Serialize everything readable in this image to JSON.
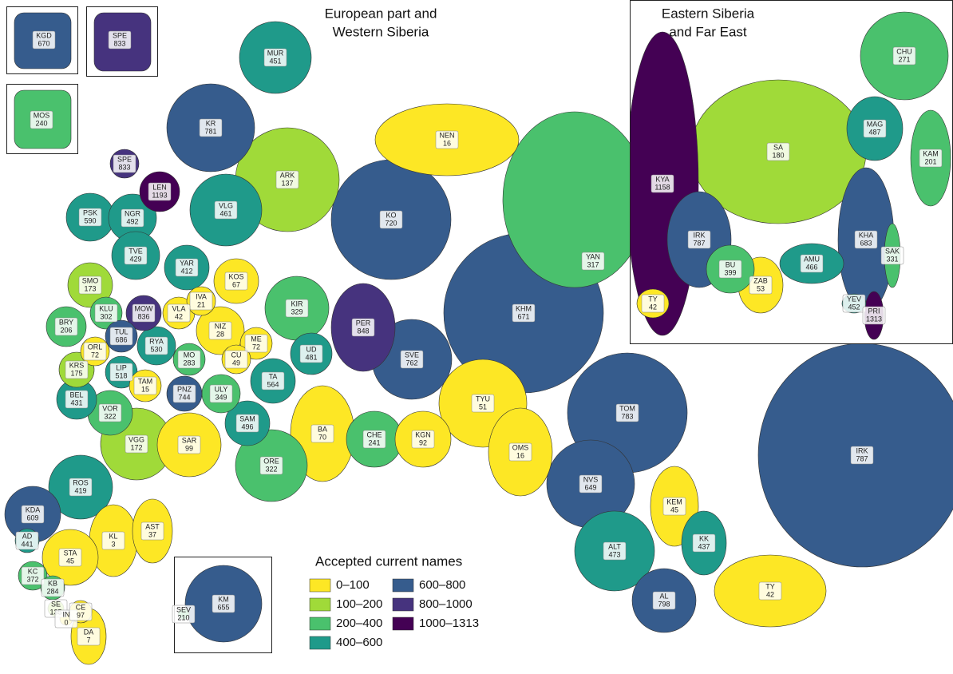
{
  "map": {
    "type": "choropleth",
    "main_title": [
      "European part and",
      "Western Siberia"
    ],
    "east_title": [
      "Eastern Siberia",
      "and Far East"
    ],
    "legend": {
      "title": "Accepted current names",
      "items": [
        {
          "label": "0–100",
          "color": "#fde725"
        },
        {
          "label": "100–200",
          "color": "#a0da39"
        },
        {
          "label": "200–400",
          "color": "#4ac16d"
        },
        {
          "label": "400–600",
          "color": "#1f9a8a"
        },
        {
          "label": "600–800",
          "color": "#365c8d"
        },
        {
          "label": "800–1000",
          "color": "#46337e"
        },
        {
          "label": "1000–1313",
          "color": "#440154"
        }
      ]
    },
    "insets": [
      {
        "code": "KGD",
        "value": 670,
        "color": "#365c8d"
      },
      {
        "code": "SPE",
        "value": 833,
        "color": "#46337e"
      },
      {
        "code": "MOS",
        "value": 240,
        "color": "#4ac16d"
      },
      {
        "code": "KM",
        "value": 655,
        "color": "#365c8d"
      },
      {
        "code": "SEV",
        "value": 210,
        "color": "#4ac16d"
      }
    ],
    "main": [
      {
        "code": "MUR",
        "value": 451,
        "color": "#1f9a8a"
      },
      {
        "code": "KR",
        "value": 781,
        "color": "#365c8d"
      },
      {
        "code": "NEN",
        "value": 16,
        "color": "#fde725"
      },
      {
        "code": "ARK",
        "value": 137,
        "color": "#a0da39"
      },
      {
        "code": "SPE",
        "value": 833,
        "color": "#46337e"
      },
      {
        "code": "LEN",
        "value": 1193,
        "color": "#440154"
      },
      {
        "code": "KO",
        "value": 720,
        "color": "#365c8d"
      },
      {
        "code": "PSK",
        "value": 590,
        "color": "#1f9a8a"
      },
      {
        "code": "NGR",
        "value": 492,
        "color": "#1f9a8a"
      },
      {
        "code": "VLG",
        "value": 461,
        "color": "#1f9a8a"
      },
      {
        "code": "TVE",
        "value": 429,
        "color": "#1f9a8a"
      },
      {
        "code": "YAR",
        "value": 412,
        "color": "#1f9a8a"
      },
      {
        "code": "SMO",
        "value": 173,
        "color": "#a0da39"
      },
      {
        "code": "KOS",
        "value": 67,
        "color": "#fde725"
      },
      {
        "code": "IVA",
        "value": 21,
        "color": "#fde725"
      },
      {
        "code": "KLU",
        "value": 302,
        "color": "#4ac16d"
      },
      {
        "code": "MOW",
        "value": 836,
        "color": "#46337e"
      },
      {
        "code": "VLA",
        "value": 42,
        "color": "#fde725"
      },
      {
        "code": "KIR",
        "value": 329,
        "color": "#4ac16d"
      },
      {
        "code": "PER",
        "value": 848,
        "color": "#46337e"
      },
      {
        "code": "KHM",
        "value": 671,
        "color": "#365c8d"
      },
      {
        "code": "YAN",
        "value": 317,
        "color": "#4ac16d"
      },
      {
        "code": "BRY",
        "value": 206,
        "color": "#4ac16d"
      },
      {
        "code": "TUL",
        "value": 686,
        "color": "#365c8d"
      },
      {
        "code": "RYA",
        "value": 530,
        "color": "#1f9a8a"
      },
      {
        "code": "NIZ",
        "value": 28,
        "color": "#fde725"
      },
      {
        "code": "ME",
        "value": 72,
        "color": "#fde725"
      },
      {
        "code": "UD",
        "value": 481,
        "color": "#1f9a8a"
      },
      {
        "code": "ORL",
        "value": 72,
        "color": "#fde725"
      },
      {
        "code": "MO",
        "value": 283,
        "color": "#4ac16d"
      },
      {
        "code": "CU",
        "value": 49,
        "color": "#fde725"
      },
      {
        "code": "SVE",
        "value": 762,
        "color": "#365c8d"
      },
      {
        "code": "KRS",
        "value": 175,
        "color": "#a0da39"
      },
      {
        "code": "LIP",
        "value": 518,
        "color": "#1f9a8a"
      },
      {
        "code": "TA",
        "value": 564,
        "color": "#1f9a8a"
      },
      {
        "code": "TAM",
        "value": 15,
        "color": "#fde725"
      },
      {
        "code": "PNZ",
        "value": 744,
        "color": "#365c8d"
      },
      {
        "code": "ULY",
        "value": 349,
        "color": "#4ac16d"
      },
      {
        "code": "TYU",
        "value": 51,
        "color": "#fde725"
      },
      {
        "code": "BEL",
        "value": 431,
        "color": "#1f9a8a"
      },
      {
        "code": "TOM",
        "value": 783,
        "color": "#365c8d"
      },
      {
        "code": "VOR",
        "value": 322,
        "color": "#4ac16d"
      },
      {
        "code": "SAM",
        "value": 496,
        "color": "#1f9a8a"
      },
      {
        "code": "BA",
        "value": 70,
        "color": "#fde725"
      },
      {
        "code": "CHE",
        "value": 241,
        "color": "#4ac16d"
      },
      {
        "code": "KGN",
        "value": 92,
        "color": "#fde725"
      },
      {
        "code": "SAR",
        "value": 99,
        "color": "#fde725"
      },
      {
        "code": "VGG",
        "value": 172,
        "color": "#a0da39"
      },
      {
        "code": "OMS",
        "value": 16,
        "color": "#fde725"
      },
      {
        "code": "IRK",
        "value": 787,
        "color": "#365c8d"
      },
      {
        "code": "ORE",
        "value": 322,
        "color": "#4ac16d"
      },
      {
        "code": "NVS",
        "value": 649,
        "color": "#365c8d"
      },
      {
        "code": "ROS",
        "value": 419,
        "color": "#1f9a8a"
      },
      {
        "code": "KEM",
        "value": 45,
        "color": "#fde725"
      },
      {
        "code": "KDA",
        "value": 609,
        "color": "#365c8d"
      },
      {
        "code": "AST",
        "value": 37,
        "color": "#fde725"
      },
      {
        "code": "AD",
        "value": 441,
        "color": "#1f9a8a"
      },
      {
        "code": "KL",
        "value": 3,
        "color": "#fde725"
      },
      {
        "code": "KK",
        "value": 437,
        "color": "#1f9a8a"
      },
      {
        "code": "ALT",
        "value": 473,
        "color": "#1f9a8a"
      },
      {
        "code": "STA",
        "value": 45,
        "color": "#fde725"
      },
      {
        "code": "KC",
        "value": 372,
        "color": "#4ac16d"
      },
      {
        "code": "KB",
        "value": 284,
        "color": "#4ac16d"
      },
      {
        "code": "AL",
        "value": 798,
        "color": "#365c8d"
      },
      {
        "code": "TY",
        "value": 42,
        "color": "#fde725"
      },
      {
        "code": "SE",
        "value": 135,
        "color": "#a0da39"
      },
      {
        "code": "IN",
        "value": 0,
        "color": "#fde725"
      },
      {
        "code": "CE",
        "value": 97,
        "color": "#fde725"
      },
      {
        "code": "DA",
        "value": 7,
        "color": "#fde725"
      }
    ],
    "east": [
      {
        "code": "KYA",
        "value": 1158,
        "color": "#440154"
      },
      {
        "code": "SA",
        "value": 180,
        "color": "#a0da39"
      },
      {
        "code": "CHU",
        "value": 271,
        "color": "#4ac16d"
      },
      {
        "code": "MAG",
        "value": 487,
        "color": "#1f9a8a"
      },
      {
        "code": "KAM",
        "value": 201,
        "color": "#4ac16d"
      },
      {
        "code": "IRK",
        "value": 787,
        "color": "#365c8d"
      },
      {
        "code": "BU",
        "value": 399,
        "color": "#4ac16d"
      },
      {
        "code": "AMU",
        "value": 466,
        "color": "#1f9a8a"
      },
      {
        "code": "KHA",
        "value": 683,
        "color": "#365c8d"
      },
      {
        "code": "SAK",
        "value": 331,
        "color": "#4ac16d"
      },
      {
        "code": "ZAB",
        "value": 53,
        "color": "#fde725"
      },
      {
        "code": "TY",
        "value": 42,
        "color": "#fde725"
      },
      {
        "code": "YEV",
        "value": 452,
        "color": "#1f9a8a"
      },
      {
        "code": "PRI",
        "value": 1313,
        "color": "#440154"
      }
    ]
  }
}
